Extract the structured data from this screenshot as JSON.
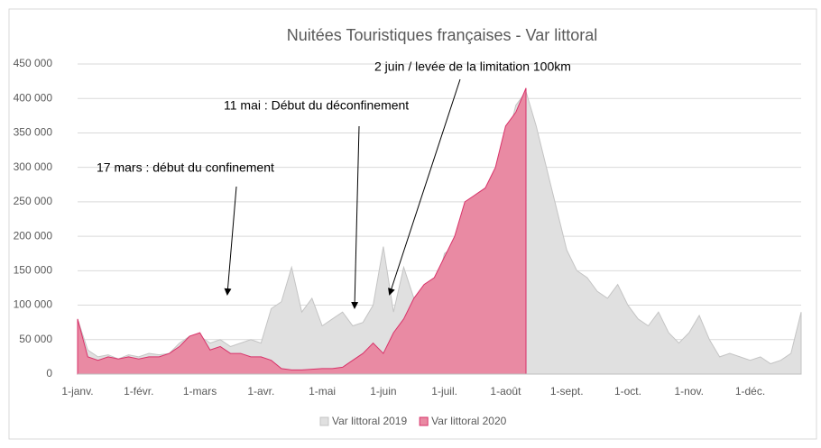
{
  "chart_data": {
    "type": "area",
    "title": "Nuitées Touristiques françaises - Var littoral",
    "annotations": [
      "17 mars : début du confinement",
      "11 mai : Début du déconfinement",
      "2 juin / levée de la limitation 100km"
    ],
    "categories": [
      "1-janv.",
      null,
      null,
      null,
      null,
      null,
      "1-févr.",
      null,
      null,
      null,
      null,
      null,
      "1-mars",
      null,
      null,
      null,
      null,
      null,
      "1-avr.",
      null,
      null,
      null,
      null,
      null,
      "1-mai",
      null,
      null,
      null,
      null,
      null,
      "1-juin",
      null,
      null,
      null,
      null,
      null,
      "1-juil.",
      null,
      null,
      null,
      null,
      null,
      "1-août",
      null,
      null,
      null,
      null,
      null,
      "1-sept.",
      null,
      null,
      null,
      null,
      null,
      "1-oct.",
      null,
      null,
      null,
      null,
      null,
      "1-nov.",
      null,
      null,
      null,
      null,
      null,
      "1-déc.",
      null,
      null,
      null,
      null,
      null
    ],
    "series": [
      {
        "name": "Var littoral 2019",
        "color": "#e0e0e0",
        "stroke": "#c4c4c4",
        "values": [
          80000,
          35000,
          25000,
          28000,
          22000,
          28000,
          25000,
          30000,
          28000,
          30000,
          45000,
          55000,
          55000,
          45000,
          50000,
          40000,
          45000,
          50000,
          45000,
          95000,
          105000,
          155000,
          90000,
          110000,
          70000,
          80000,
          90000,
          70000,
          75000,
          100000,
          185000,
          90000,
          155000,
          110000,
          120000,
          115000,
          175000,
          185000,
          200000,
          260000,
          270000,
          280000,
          330000,
          390000,
          410000,
          360000,
          300000,
          240000,
          180000,
          150000,
          140000,
          120000,
          110000,
          130000,
          100000,
          80000,
          70000,
          90000,
          60000,
          45000,
          60000,
          85000,
          50000,
          25000,
          30000,
          25000,
          20000,
          25000,
          15000,
          20000,
          30000,
          90000
        ]
      },
      {
        "name": "Var littoral 2020",
        "color": "#e98aa3",
        "stroke": "#d8336a",
        "values": [
          80000,
          25000,
          20000,
          25000,
          22000,
          25000,
          22000,
          25000,
          25000,
          30000,
          40000,
          55000,
          60000,
          35000,
          40000,
          30000,
          30000,
          25000,
          25000,
          20000,
          8000,
          6000,
          6000,
          7000,
          8000,
          8000,
          10000,
          20000,
          30000,
          45000,
          30000,
          60000,
          80000,
          110000,
          130000,
          140000,
          170000,
          200000,
          250000,
          260000,
          270000,
          300000,
          360000,
          380000,
          415000,
          null,
          null,
          null,
          null,
          null,
          null,
          null,
          null,
          null,
          null,
          null,
          null,
          null,
          null,
          null,
          null,
          null,
          null,
          null,
          null,
          null,
          null,
          null,
          null,
          null,
          null,
          null
        ]
      }
    ],
    "ylim": [
      0,
      450000
    ],
    "yticks": [
      0,
      {
        "value": 50000,
        "label": "50 000"
      },
      {
        "value": 100000,
        "label": "100 000"
      },
      {
        "value": 150000,
        "label": "150 000"
      },
      {
        "value": 200000,
        "label": "200 000"
      },
      {
        "value": 250000,
        "label": "250 000"
      },
      {
        "value": 300000,
        "label": "300 000"
      },
      {
        "value": 350000,
        "label": "350 000"
      },
      {
        "value": 400000,
        "label": "400 000"
      },
      {
        "value": 450000,
        "label": "450 000"
      }
    ],
    "grid": true
  }
}
